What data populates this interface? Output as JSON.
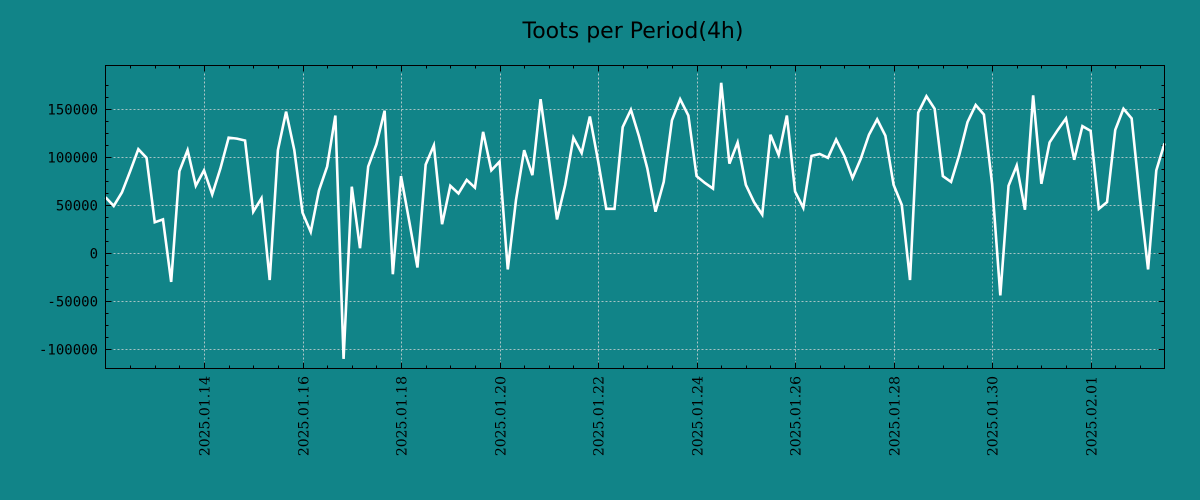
{
  "chart_data": {
    "type": "line",
    "title": "Toots per Period(4h)",
    "xlabel": "",
    "ylabel": "",
    "grid": true,
    "colors": {
      "background": "#118488",
      "line": "#ffffff",
      "grid": "#d8d8d8",
      "frame": "#000000"
    },
    "x_axis": {
      "start": "2025-01-12T08:00",
      "step_hours": 4,
      "range_days": [
        0,
        21.5
      ],
      "ticks": [
        {
          "label": "2025.01.14",
          "day": 2
        },
        {
          "label": "2025.01.16",
          "day": 4
        },
        {
          "label": "2025.01.18",
          "day": 6
        },
        {
          "label": "2025.01.20",
          "day": 8
        },
        {
          "label": "2025.01.22",
          "day": 10
        },
        {
          "label": "2025.01.24",
          "day": 12
        },
        {
          "label": "2025.01.26",
          "day": 14
        },
        {
          "label": "2025.01.28",
          "day": 16
        },
        {
          "label": "2025.01.30",
          "day": 18
        },
        {
          "label": "2025.02.01",
          "day": 20
        }
      ]
    },
    "y_axis": {
      "ylim": [
        -120000,
        195000
      ],
      "ticks": [
        {
          "label": "150000",
          "value": 150000
        },
        {
          "label": "100000",
          "value": 100000
        },
        {
          "label": "50000",
          "value": 50000
        },
        {
          "label": "0",
          "value": 0
        },
        {
          "label": "-50000",
          "value": -50000
        },
        {
          "label": "-100000",
          "value": -100000
        }
      ]
    },
    "series": [
      {
        "name": "toots",
        "values": [
          58000,
          49000,
          63000,
          85000,
          108000,
          99000,
          32000,
          35000,
          -30000,
          85000,
          107000,
          70000,
          86000,
          61000,
          88000,
          120000,
          119000,
          117000,
          43000,
          57000,
          -28000,
          107000,
          147000,
          107000,
          42000,
          22000,
          65000,
          90000,
          143000,
          -110000,
          69000,
          5000,
          90000,
          113000,
          148000,
          -22000,
          80000,
          33000,
          -15000,
          92000,
          112000,
          30000,
          70000,
          62000,
          76000,
          68000,
          126000,
          86000,
          95000,
          -17000,
          55000,
          107000,
          81000,
          160000,
          98000,
          35000,
          71000,
          120000,
          104000,
          142000,
          96000,
          46000,
          46000,
          131000,
          149000,
          121000,
          88000,
          43000,
          74000,
          138000,
          160000,
          143000,
          80000,
          73000,
          67000,
          177000,
          93000,
          115000,
          71000,
          53000,
          40000,
          123000,
          102000,
          143000,
          64000,
          47000,
          101000,
          103000,
          99000,
          118000,
          101000,
          78000,
          98000,
          123000,
          139000,
          122000,
          71000,
          50000,
          -28000,
          146000,
          163000,
          150000,
          80000,
          74000,
          102000,
          136000,
          154000,
          144000,
          72000,
          -44000,
          70000,
          91000,
          45000,
          164000,
          72000,
          115000,
          128000,
          140000,
          97000,
          132000,
          127000,
          46000,
          53000,
          128000,
          150000,
          140000,
          57000,
          -17000,
          86000,
          114000
        ]
      }
    ]
  }
}
